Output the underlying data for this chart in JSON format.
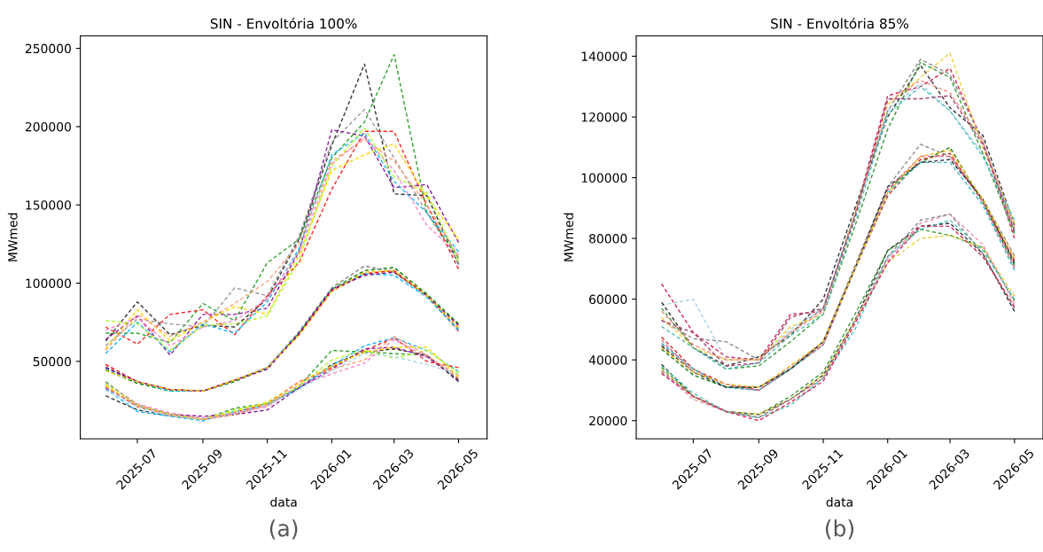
{
  "chart_data": [
    {
      "type": "line",
      "title": "SIN - Envoltória 100%",
      "xlabel": "data",
      "ylabel": "MWmed",
      "line_style": "dashed",
      "grid": false,
      "annotations": [
        "(a)"
      ],
      "x": [
        "2025-06",
        "2025-07",
        "2025-08",
        "2025-09",
        "2025-10",
        "2025-11",
        "2025-12",
        "2026-01",
        "2026-02",
        "2026-03",
        "2026-04",
        "2026-05"
      ],
      "xlim": [
        "2025-05-08",
        "2026-05-28"
      ],
      "xticks": [
        {
          "value": "2025-07",
          "label": "2025-07"
        },
        {
          "value": "2025-09",
          "label": "2025-09"
        },
        {
          "value": "2025-11",
          "label": "2025-11"
        },
        {
          "value": "2026-01",
          "label": "2026-01"
        },
        {
          "value": "2026-03",
          "label": "2026-03"
        },
        {
          "value": "2026-05",
          "label": "2026-05"
        }
      ],
      "ylim": [
        500,
        258000
      ],
      "yticks": [
        50000,
        100000,
        150000,
        200000,
        250000
      ],
      "series": [
        {
          "color": "#333333",
          "values": [
            63000,
            88000,
            67000,
            73000,
            72000,
            90000,
            128000,
            188000,
            240000,
            157000,
            156000,
            112000
          ]
        },
        {
          "color": "#2ca02c",
          "values": [
            68000,
            68000,
            62000,
            87000,
            76000,
            113000,
            128000,
            180000,
            203000,
            246000,
            145000,
            116000
          ]
        },
        {
          "color": "#999999",
          "values": [
            60000,
            77000,
            74000,
            72000,
            97000,
            92000,
            130000,
            190000,
            211000,
            180000,
            145000,
            113000
          ]
        },
        {
          "color": "#ff2222",
          "values": [
            72000,
            61000,
            80000,
            83000,
            67000,
            92000,
            113000,
            160000,
            197000,
            197000,
            150000,
            109000
          ]
        },
        {
          "color": "#8b1a9b",
          "values": [
            64000,
            79000,
            54000,
            80000,
            80000,
            84000,
            120000,
            198000,
            194000,
            161000,
            163000,
            126000
          ]
        },
        {
          "color": "#ffd700",
          "values": [
            58000,
            83000,
            63000,
            75000,
            85000,
            80000,
            118000,
            172000,
            182000,
            189000,
            155000,
            128000
          ]
        },
        {
          "color": "#1eb4ff",
          "values": [
            55000,
            75000,
            56000,
            74000,
            68000,
            88000,
            122000,
            182000,
            196000,
            165000,
            145000,
            120000
          ]
        },
        {
          "color": "#ff88c8",
          "values": [
            70000,
            78000,
            60000,
            72000,
            76000,
            90000,
            120000,
            176000,
            193000,
            172000,
            137000,
            118000
          ]
        },
        {
          "color": "#adff2f",
          "values": [
            76000,
            74000,
            57000,
            73000,
            74000,
            79000,
            115000,
            175000,
            199000,
            168000,
            158000,
            114000
          ]
        },
        {
          "color": "#ffa07a",
          "values": [
            57000,
            80000,
            66000,
            75000,
            87000,
            101000,
            125000,
            178000,
            192000,
            178000,
            150000,
            117000
          ]
        },
        {
          "color": "#ff0000",
          "values": [
            48000,
            37000,
            32000,
            31000,
            38000,
            46000,
            67000,
            95000,
            106000,
            108000,
            92000,
            69500
          ]
        },
        {
          "color": "#008000",
          "values": [
            44500,
            36000,
            31000,
            31000,
            37000,
            46000,
            68000,
            96000,
            108000,
            110000,
            93000,
            74000
          ]
        },
        {
          "color": "#808080",
          "values": [
            46500,
            37000,
            32000,
            31000,
            38000,
            46000,
            69000,
            97000,
            111000,
            107000,
            92000,
            71000
          ]
        },
        {
          "color": "#00bfff",
          "values": [
            45500,
            37000,
            31000,
            31000,
            38000,
            46000,
            68000,
            96000,
            106000,
            105000,
            91000,
            70000
          ]
        },
        {
          "color": "#800080",
          "values": [
            46000,
            37000,
            32000,
            31000,
            38000,
            45000,
            68000,
            96000,
            105000,
            107000,
            92000,
            73000
          ]
        },
        {
          "color": "#ffc800",
          "values": [
            44000,
            37000,
            32000,
            31000,
            38000,
            46000,
            67000,
            95000,
            107000,
            108000,
            92000,
            71500
          ]
        },
        {
          "color": "#333333",
          "values": [
            28000,
            19000,
            15000,
            13000,
            16000,
            22000,
            33000,
            48000,
            56000,
            58000,
            54000,
            37000
          ]
        },
        {
          "color": "#2ca02c",
          "values": [
            37000,
            22000,
            16000,
            13000,
            20000,
            23000,
            34000,
            57000,
            56000,
            55000,
            54000,
            38600
          ]
        },
        {
          "color": "#1eb4ff",
          "values": [
            32500,
            18000,
            15000,
            12000,
            18000,
            22000,
            33000,
            47000,
            60000,
            65000,
            57000,
            43400
          ]
        },
        {
          "color": "#ff2222",
          "values": [
            34000,
            21000,
            16000,
            13000,
            17000,
            23000,
            37000,
            46000,
            57000,
            65000,
            50000,
            46000
          ]
        },
        {
          "color": "#ff88c8",
          "values": [
            36000,
            23000,
            17000,
            14000,
            17000,
            21000,
            35000,
            42000,
            49000,
            64000,
            53000,
            41000
          ]
        },
        {
          "color": "#adff2f",
          "values": [
            35500,
            22000,
            16000,
            13000,
            19000,
            23000,
            34000,
            51000,
            57000,
            52000,
            57000,
            42600
          ]
        },
        {
          "color": "#8b1a9b",
          "values": [
            33000,
            22000,
            16000,
            15000,
            16000,
            19000,
            33000,
            45000,
            58000,
            59000,
            53000,
            37800
          ]
        },
        {
          "color": "#ffd700",
          "values": [
            34500,
            22000,
            16000,
            13000,
            18000,
            24000,
            36000,
            47000,
            56000,
            59000,
            59000,
            40200
          ]
        },
        {
          "color": "#add8e6",
          "values": [
            31500,
            21000,
            15000,
            13000,
            17000,
            22000,
            32000,
            44000,
            55000,
            53000,
            48000,
            41800
          ]
        },
        {
          "color": "#ffa07a",
          "values": [
            33500,
            22000,
            16000,
            13000,
            16000,
            22000,
            37000,
            45000,
            51000,
            66000,
            54000,
            39400
          ]
        }
      ]
    },
    {
      "type": "line",
      "title": "SIN - Envoltória 85%",
      "xlabel": "data",
      "ylabel": "MWmed",
      "line_style": "dashed",
      "grid": false,
      "annotations": [
        "(b)"
      ],
      "x": [
        "2025-06",
        "2025-07",
        "2025-08",
        "2025-09",
        "2025-10",
        "2025-11",
        "2025-12",
        "2026-01",
        "2026-02",
        "2026-03",
        "2026-04",
        "2026-05"
      ],
      "xlim": [
        "2025-05-08",
        "2026-05-28"
      ],
      "xticks": [
        {
          "value": "2025-07",
          "label": "2025-07"
        },
        {
          "value": "2025-09",
          "label": "2025-09"
        },
        {
          "value": "2025-11",
          "label": "2025-11"
        },
        {
          "value": "2026-01",
          "label": "2026-01"
        },
        {
          "value": "2026-03",
          "label": "2026-03"
        },
        {
          "value": "2026-05",
          "label": "2026-05"
        }
      ],
      "ylim": [
        14000,
        146700
      ],
      "yticks": [
        20000,
        40000,
        60000,
        80000,
        100000,
        120000,
        140000
      ],
      "series": [
        {
          "color": "#d62750",
          "values": [
            65000,
            49000,
            41000,
            40000,
            55000,
            56000,
            88000,
            127000,
            130000,
            136000,
            112000,
            80000
          ]
        },
        {
          "color": "#a8d0e0",
          "values": [
            58000,
            60000,
            40000,
            40000,
            50000,
            57000,
            88000,
            122000,
            131000,
            122000,
            108000,
            83000
          ]
        },
        {
          "color": "#333333",
          "values": [
            59000,
            44000,
            38000,
            41000,
            48000,
            60000,
            90000,
            120000,
            137000,
            123000,
            114000,
            84500
          ]
        },
        {
          "color": "#8a8a8a",
          "values": [
            53000,
            47000,
            46000,
            40000,
            49000,
            57000,
            88000,
            122000,
            139000,
            134000,
            112000,
            82000
          ]
        },
        {
          "color": "#3a9a3a",
          "values": [
            57000,
            44000,
            37000,
            38000,
            46000,
            55000,
            84000,
            116000,
            138000,
            133000,
            108000,
            81500
          ]
        },
        {
          "color": "#f0d040",
          "values": [
            54000,
            44000,
            40000,
            40000,
            51000,
            55000,
            88000,
            124000,
            133000,
            141000,
            110000,
            85000
          ]
        },
        {
          "color": "#f09080",
          "values": [
            56000,
            45000,
            40000,
            40000,
            49000,
            56000,
            87000,
            125000,
            132000,
            128000,
            112000,
            83500
          ]
        },
        {
          "color": "#50c0c0",
          "values": [
            51000,
            44000,
            37000,
            39000,
            48000,
            55000,
            86000,
            121000,
            130000,
            122000,
            107000,
            86000
          ]
        },
        {
          "color": "#a04070",
          "values": [
            53000,
            49000,
            38000,
            39000,
            54000,
            57000,
            87000,
            126000,
            126000,
            127000,
            111000,
            82500
          ]
        },
        {
          "color": "#e02020",
          "values": [
            47500,
            37000,
            32000,
            30000,
            37000,
            45000,
            70000,
            94000,
            106000,
            108000,
            92000,
            72700
          ]
        },
        {
          "color": "#1a7a1a",
          "values": [
            43500,
            35000,
            31000,
            31000,
            37000,
            46000,
            70000,
            96000,
            105000,
            110000,
            92000,
            71100
          ]
        },
        {
          "color": "#8a8a8a",
          "values": [
            45000,
            37000,
            31000,
            30000,
            37000,
            46000,
            71000,
            97000,
            111000,
            107000,
            93000,
            74300
          ]
        },
        {
          "color": "#40b8c8",
          "values": [
            45500,
            37000,
            31000,
            30000,
            37000,
            45000,
            70000,
            95000,
            105000,
            105000,
            91000,
            69500
          ]
        },
        {
          "color": "#e07090",
          "values": [
            46500,
            36000,
            32000,
            30000,
            38000,
            45000,
            70000,
            96000,
            107000,
            107000,
            92000,
            70300
          ]
        },
        {
          "color": "#333333",
          "values": [
            44500,
            36000,
            31000,
            31000,
            37000,
            46000,
            70000,
            97000,
            105000,
            106000,
            93000,
            71900
          ]
        },
        {
          "color": "#f0c020",
          "values": [
            44000,
            36000,
            32000,
            31000,
            38000,
            46000,
            70000,
            95000,
            107000,
            109000,
            93000,
            73500
          ]
        },
        {
          "color": "#333333",
          "values": [
            38500,
            28000,
            23000,
            22000,
            27000,
            35000,
            53000,
            76000,
            84000,
            85000,
            75000,
            56000
          ]
        },
        {
          "color": "#3a9a3a",
          "values": [
            37500,
            28000,
            23000,
            22000,
            28000,
            36000,
            55000,
            76000,
            83000,
            81000,
            77000,
            59500
          ]
        },
        {
          "color": "#f0d040",
          "values": [
            37000,
            28000,
            23000,
            22000,
            27000,
            35000,
            53000,
            72000,
            80000,
            81000,
            77000,
            61000
          ]
        },
        {
          "color": "#f090b0",
          "values": [
            36000,
            27000,
            23000,
            21000,
            27000,
            34000,
            52000,
            73000,
            85000,
            88000,
            78000,
            58500
          ]
        },
        {
          "color": "#50c0c0",
          "values": [
            38000,
            29000,
            23000,
            21000,
            25000,
            34000,
            50000,
            74000,
            83000,
            86000,
            76000,
            60000
          ]
        },
        {
          "color": "#8a8a8a",
          "values": [
            36500,
            28000,
            23000,
            21000,
            27000,
            34000,
            53000,
            74000,
            86000,
            88000,
            75000,
            57000
          ]
        },
        {
          "color": "#d62750",
          "values": [
            35500,
            28000,
            23000,
            20000,
            26000,
            33000,
            52000,
            72000,
            84000,
            84000,
            74000,
            57500
          ]
        }
      ]
    }
  ]
}
